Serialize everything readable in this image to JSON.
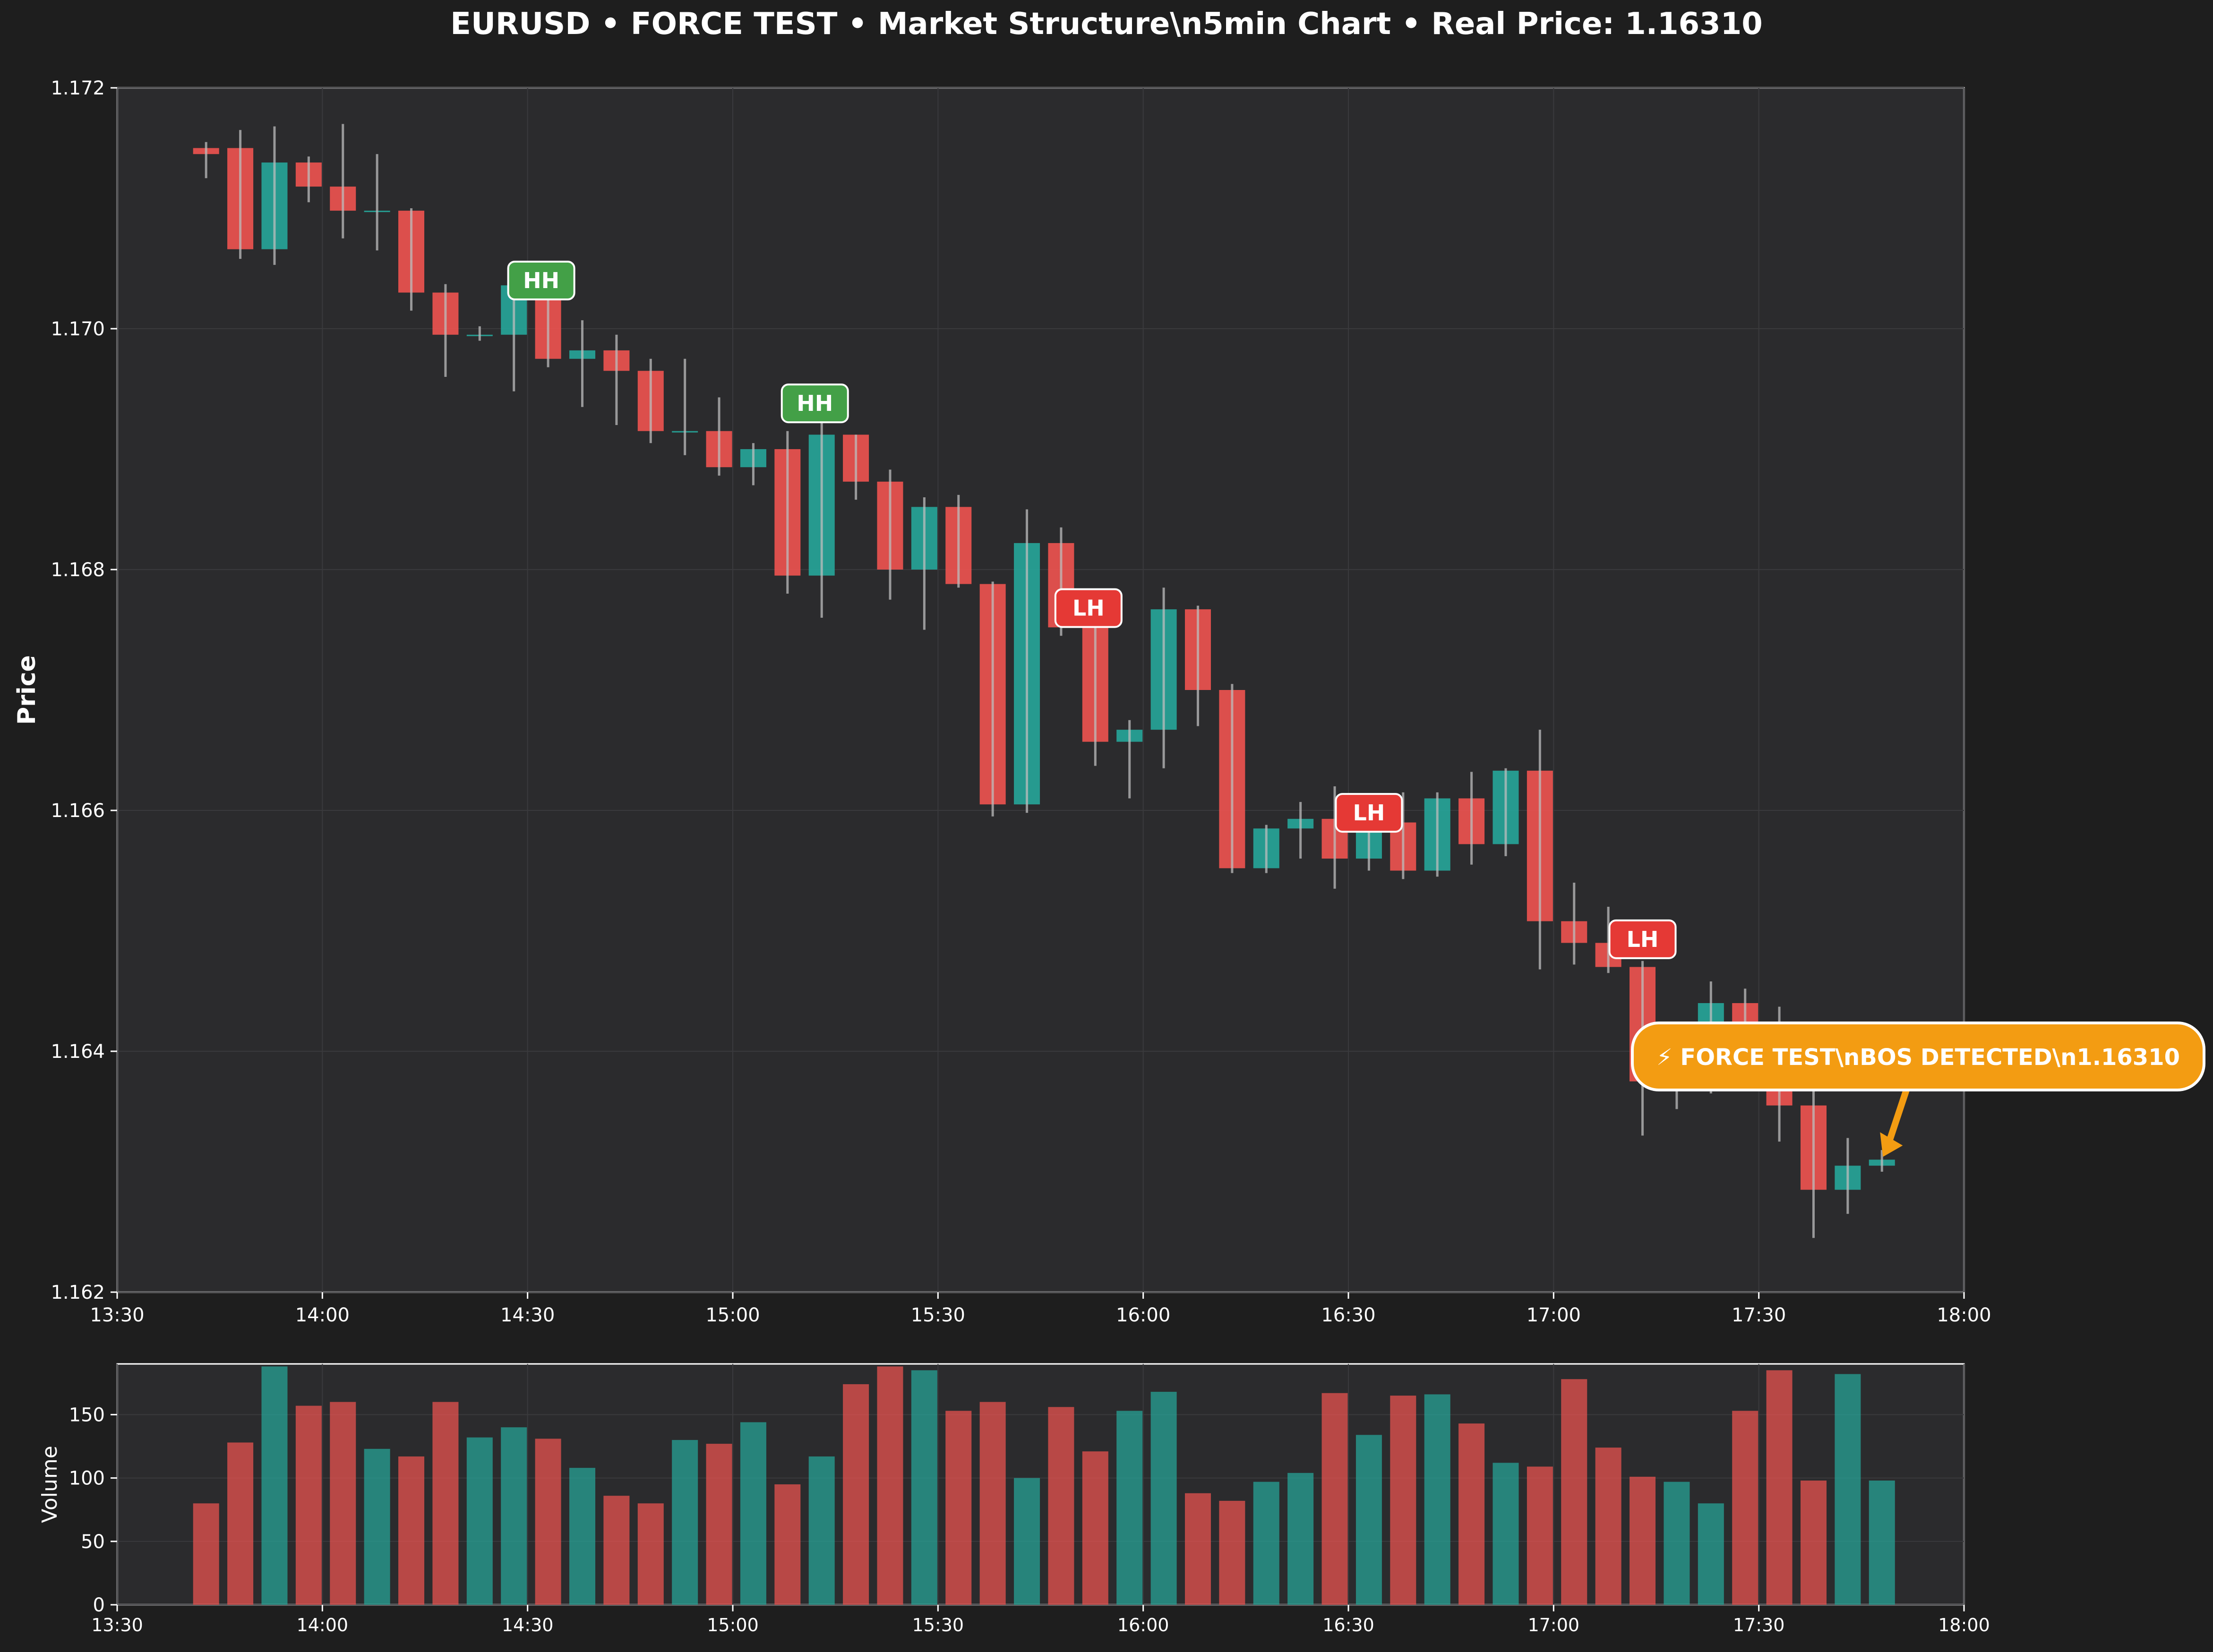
{
  "title": "EURUSD • FORCE TEST • Market Structure\\n5min Chart • Real Price: 1.16310",
  "colors": {
    "background": "#1e1e1e",
    "panel": "#2b2b2d",
    "bull": "#26a69a",
    "bear": "#ef5350",
    "wick": "#bdbdbd",
    "hh_label": "#43a047",
    "lh_label": "#e53935",
    "callout": "#f39c12",
    "text": "#ffffff"
  },
  "chart_data": [
    {
      "type": "candlestick",
      "ylabel": "Price",
      "ylim": [
        1.162,
        1.172
      ],
      "yticks": [
        "1.162",
        "1.164",
        "1.166",
        "1.168",
        "1.170",
        "1.172"
      ],
      "xlim": [
        "13:30",
        "18:00"
      ],
      "xticks": [
        "13:30",
        "14:00",
        "14:30",
        "15:00",
        "15:30",
        "16:00",
        "16:30",
        "17:00",
        "17:30",
        "18:00"
      ],
      "grid": true,
      "candles": [
        {
          "t": "13:43",
          "o": 1.1715,
          "h": 1.17155,
          "l": 1.17125,
          "c": 1.17145
        },
        {
          "t": "13:48",
          "o": 1.1715,
          "h": 1.17165,
          "l": 1.17058,
          "c": 1.17066
        },
        {
          "t": "13:53",
          "o": 1.17066,
          "h": 1.17168,
          "l": 1.17053,
          "c": 1.17138
        },
        {
          "t": "13:58",
          "o": 1.17138,
          "h": 1.17143,
          "l": 1.17105,
          "c": 1.17118
        },
        {
          "t": "14:03",
          "o": 1.17118,
          "h": 1.1717,
          "l": 1.17075,
          "c": 1.17098
        },
        {
          "t": "14:08",
          "o": 1.17098,
          "h": 1.17145,
          "l": 1.17065,
          "c": 1.17098
        },
        {
          "t": "14:13",
          "o": 1.17098,
          "h": 1.171,
          "l": 1.17015,
          "c": 1.1703
        },
        {
          "t": "14:18",
          "o": 1.1703,
          "h": 1.17037,
          "l": 1.1696,
          "c": 1.16995
        },
        {
          "t": "14:23",
          "o": 1.16995,
          "h": 1.17002,
          "l": 1.1699,
          "c": 1.16995
        },
        {
          "t": "14:28",
          "o": 1.16995,
          "h": 1.17038,
          "l": 1.16948,
          "c": 1.17036
        },
        {
          "t": "14:33",
          "o": 1.17028,
          "h": 1.17033,
          "l": 1.16968,
          "c": 1.16975
        },
        {
          "t": "14:38",
          "o": 1.16975,
          "h": 1.17007,
          "l": 1.16935,
          "c": 1.16982
        },
        {
          "t": "14:43",
          "o": 1.16982,
          "h": 1.16995,
          "l": 1.1692,
          "c": 1.16965
        },
        {
          "t": "14:48",
          "o": 1.16965,
          "h": 1.16975,
          "l": 1.16905,
          "c": 1.16915
        },
        {
          "t": "14:53",
          "o": 1.16915,
          "h": 1.16975,
          "l": 1.16895,
          "c": 1.16915
        },
        {
          "t": "14:58",
          "o": 1.16915,
          "h": 1.16943,
          "l": 1.16878,
          "c": 1.16885
        },
        {
          "t": "15:03",
          "o": 1.16885,
          "h": 1.16905,
          "l": 1.1687,
          "c": 1.169
        },
        {
          "t": "15:08",
          "o": 1.169,
          "h": 1.16915,
          "l": 1.1678,
          "c": 1.16795
        },
        {
          "t": "15:13",
          "o": 1.16795,
          "h": 1.16925,
          "l": 1.1676,
          "c": 1.16912
        },
        {
          "t": "15:18",
          "o": 1.16912,
          "h": 1.16912,
          "l": 1.16858,
          "c": 1.16873
        },
        {
          "t": "15:23",
          "o": 1.16873,
          "h": 1.16883,
          "l": 1.16775,
          "c": 1.168
        },
        {
          "t": "15:28",
          "o": 1.168,
          "h": 1.1686,
          "l": 1.1675,
          "c": 1.16852
        },
        {
          "t": "15:33",
          "o": 1.16852,
          "h": 1.16862,
          "l": 1.16785,
          "c": 1.16788
        },
        {
          "t": "15:38",
          "o": 1.16788,
          "h": 1.1679,
          "l": 1.16595,
          "c": 1.16605
        },
        {
          "t": "15:43",
          "o": 1.16605,
          "h": 1.1685,
          "l": 1.16598,
          "c": 1.16822
        },
        {
          "t": "15:48",
          "o": 1.16822,
          "h": 1.16835,
          "l": 1.16745,
          "c": 1.16752
        },
        {
          "t": "15:53",
          "o": 1.16752,
          "h": 1.16763,
          "l": 1.16637,
          "c": 1.16657
        },
        {
          "t": "15:58",
          "o": 1.16657,
          "h": 1.16675,
          "l": 1.1661,
          "c": 1.16667
        },
        {
          "t": "16:03",
          "o": 1.16667,
          "h": 1.16785,
          "l": 1.16635,
          "c": 1.16767
        },
        {
          "t": "16:08",
          "o": 1.16767,
          "h": 1.1677,
          "l": 1.1667,
          "c": 1.167
        },
        {
          "t": "16:13",
          "o": 1.167,
          "h": 1.16705,
          "l": 1.16548,
          "c": 1.16552
        },
        {
          "t": "16:18",
          "o": 1.16552,
          "h": 1.16588,
          "l": 1.16548,
          "c": 1.16585
        },
        {
          "t": "16:23",
          "o": 1.16585,
          "h": 1.16607,
          "l": 1.1656,
          "c": 1.16593
        },
        {
          "t": "16:28",
          "o": 1.16593,
          "h": 1.1662,
          "l": 1.16535,
          "c": 1.1656
        },
        {
          "t": "16:33",
          "o": 1.1656,
          "h": 1.16595,
          "l": 1.1655,
          "c": 1.1659
        },
        {
          "t": "16:38",
          "o": 1.1659,
          "h": 1.16615,
          "l": 1.16543,
          "c": 1.1655
        },
        {
          "t": "16:43",
          "o": 1.1655,
          "h": 1.16615,
          "l": 1.16545,
          "c": 1.1661
        },
        {
          "t": "16:48",
          "o": 1.1661,
          "h": 1.16632,
          "l": 1.16555,
          "c": 1.16572
        },
        {
          "t": "16:53",
          "o": 1.16572,
          "h": 1.16635,
          "l": 1.16562,
          "c": 1.16633
        },
        {
          "t": "16:58",
          "o": 1.16633,
          "h": 1.16667,
          "l": 1.16468,
          "c": 1.16508
        },
        {
          "t": "17:03",
          "o": 1.16508,
          "h": 1.1654,
          "l": 1.16472,
          "c": 1.1649
        },
        {
          "t": "17:08",
          "o": 1.1649,
          "h": 1.1652,
          "l": 1.16465,
          "c": 1.1647
        },
        {
          "t": "17:13",
          "o": 1.1647,
          "h": 1.16475,
          "l": 1.1633,
          "c": 1.16375
        },
        {
          "t": "17:18",
          "o": 1.16375,
          "h": 1.1642,
          "l": 1.16352,
          "c": 1.16405
        },
        {
          "t": "17:23",
          "o": 1.16405,
          "h": 1.16458,
          "l": 1.16365,
          "c": 1.1644
        },
        {
          "t": "17:28",
          "o": 1.1644,
          "h": 1.16452,
          "l": 1.16378,
          "c": 1.16388
        },
        {
          "t": "17:33",
          "o": 1.16388,
          "h": 1.16437,
          "l": 1.16325,
          "c": 1.16355
        },
        {
          "t": "17:38",
          "o": 1.16355,
          "h": 1.1637,
          "l": 1.16245,
          "c": 1.16285
        },
        {
          "t": "17:43",
          "o": 1.16285,
          "h": 1.16328,
          "l": 1.16265,
          "c": 1.16305
        },
        {
          "t": "17:48",
          "o": 1.16305,
          "h": 1.16318,
          "l": 1.163,
          "c": 1.1631
        }
      ],
      "annotations": [
        {
          "label": "HH",
          "kind": "hh",
          "t": "14:32",
          "price": 1.1704
        },
        {
          "label": "HH",
          "kind": "hh",
          "t": "15:12",
          "price": 1.16938
        },
        {
          "label": "LH",
          "kind": "lh",
          "t": "15:52",
          "price": 1.16768
        },
        {
          "label": "LH",
          "kind": "lh",
          "t": "16:33",
          "price": 1.16598
        },
        {
          "label": "LH",
          "kind": "lh",
          "t": "17:13",
          "price": 1.16493
        }
      ],
      "callout": {
        "text": "⚡ FORCE TEST\\nBOS DETECTED\\n1.16310",
        "text_t": "17:50",
        "text_price": 1.164,
        "target_t": "17:48",
        "target_price": 1.1631
      }
    },
    {
      "type": "bar",
      "ylabel": "Volume",
      "ylim": [
        0,
        190
      ],
      "yticks": [
        "0",
        "50",
        "100",
        "150"
      ],
      "xlim": [
        "13:30",
        "18:00"
      ],
      "xticks": [
        "13:30",
        "14:00",
        "14:30",
        "15:00",
        "15:30",
        "16:00",
        "16:30",
        "17:00",
        "17:30",
        "18:00"
      ],
      "grid": true,
      "values": [
        80,
        128,
        188,
        157,
        160,
        123,
        117,
        160,
        132,
        140,
        131,
        108,
        86,
        80,
        130,
        127,
        144,
        95,
        117,
        174,
        188,
        185,
        153,
        160,
        100,
        156,
        121,
        153,
        168,
        88,
        82,
        97,
        104,
        167,
        134,
        165,
        166,
        143,
        112,
        109,
        178,
        124,
        101,
        97,
        80,
        153,
        185,
        98,
        182,
        98
      ]
    }
  ]
}
